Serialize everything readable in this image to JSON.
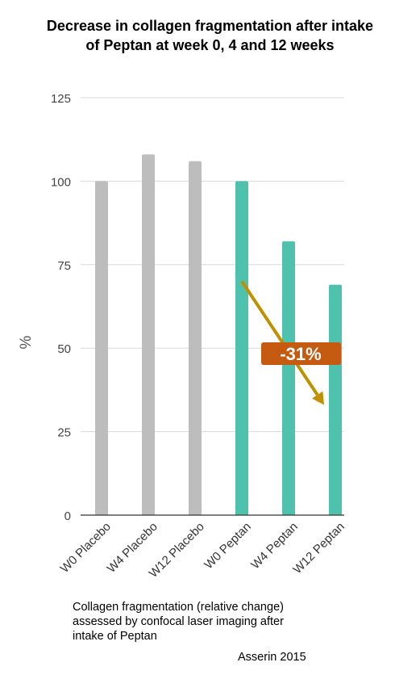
{
  "chart_data": {
    "type": "bar",
    "title_lines": [
      "Decrease in collagen fragmentation after intake",
      "of Peptan at week 0, 4 and 12 weeks"
    ],
    "ylabel": "%",
    "xlabel": "",
    "ylim": [
      0,
      125
    ],
    "yticks": [
      "0",
      "25",
      "50",
      "75",
      "100",
      "125"
    ],
    "grid": true,
    "categories": [
      "W0 Placebo",
      "W4 Placebo",
      "W12 Placebo",
      "W0 Peptan",
      "W4 Peptan",
      "W12 Peptan"
    ],
    "values": [
      100,
      108,
      106,
      100,
      82,
      69
    ],
    "colors": [
      "#bdbdbd",
      "#bdbdbd",
      "#bdbdbd",
      "#4fc2ad",
      "#4fc2ad",
      "#4fc2ad"
    ],
    "annotation": {
      "label": "-31%",
      "label_color": "#c55a11",
      "arrow_color": "#bf9000",
      "from": [
        3,
        70
      ],
      "to": [
        5,
        33
      ]
    }
  },
  "caption_lines": [
    "Collagen fragmentation (relative change)",
    "assessed by confocal laser imaging after",
    "intake of Peptan"
  ],
  "source": "Asserin 2015"
}
